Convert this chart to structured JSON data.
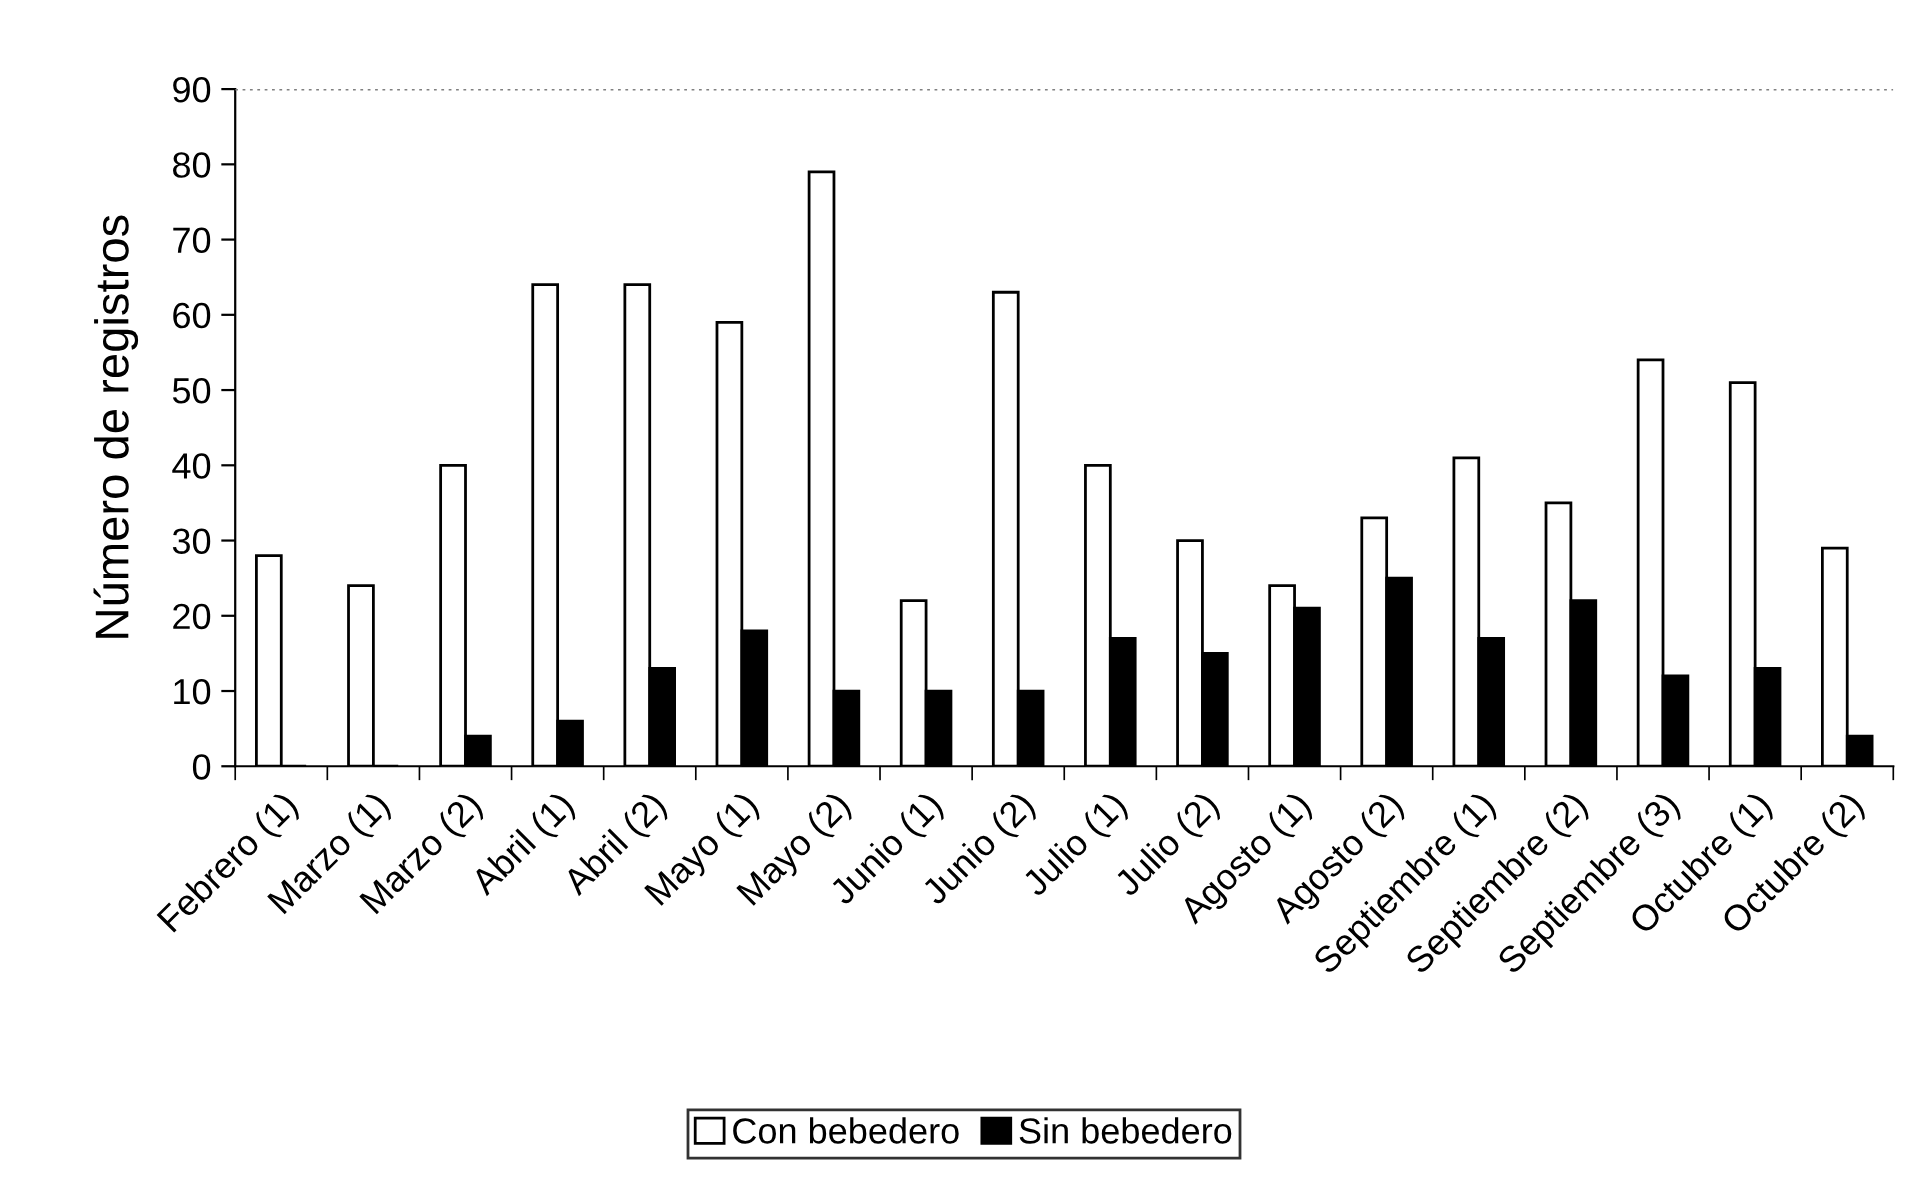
{
  "chart_data": {
    "type": "bar",
    "ylabel": "Número de registros",
    "categories": [
      "Febrero (1)",
      "Marzo (1)",
      "Marzo (2)",
      "Abril (1)",
      "Abril (2)",
      "Mayo (1)",
      "Mayo (2)",
      "Junio (1)",
      "Junio (2)",
      "Julio (1)",
      "Julio (2)",
      "Agosto (1)",
      "Agosto (2)",
      "Septiembre (1)",
      "Septiembre (2)",
      "Septiembre (3)",
      "Octubre (1)",
      "Octubre (2)"
    ],
    "series": [
      {
        "name": "Con bebedero",
        "color": "#ffffff",
        "values": [
          28,
          24,
          40,
          64,
          64,
          59,
          79,
          22,
          63,
          40,
          30,
          24,
          33,
          41,
          35,
          54,
          51,
          29
        ]
      },
      {
        "name": "Sin bebedero",
        "color": "#000000",
        "values": [
          0,
          0,
          4,
          6,
          13,
          18,
          10,
          10,
          10,
          17,
          15,
          21,
          25,
          17,
          22,
          12,
          13,
          4
        ]
      }
    ],
    "ylim": [
      0,
      90
    ],
    "yticks": [
      0,
      10,
      20,
      30,
      40,
      50,
      60,
      70,
      80,
      90
    ],
    "ref_lines": [
      {
        "axis": "y",
        "value": 90,
        "color": "#808080",
        "line_style": "dotted"
      }
    ],
    "grid": false,
    "legend": "bottom"
  }
}
